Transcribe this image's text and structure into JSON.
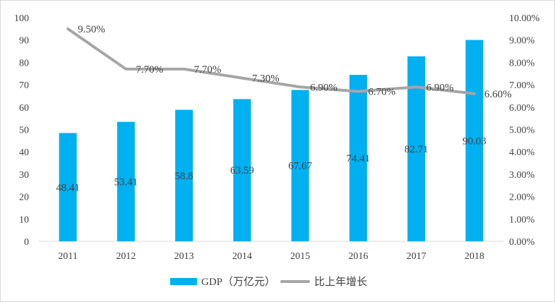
{
  "chart_data": {
    "type": "bar",
    "categories": [
      "2011",
      "2012",
      "2013",
      "2014",
      "2015",
      "2016",
      "2017",
      "2018"
    ],
    "series": [
      {
        "name": "GDP（万亿元）",
        "type": "bar",
        "axis": "left",
        "values": [
          48.41,
          53.41,
          58.8,
          63.59,
          67.67,
          74.41,
          82.71,
          90.03
        ],
        "labels": [
          "48.41",
          "53.41",
          "58.8",
          "63.59",
          "67.67",
          "74.41",
          "82.71",
          "90.03"
        ],
        "color": "#00b0f0"
      },
      {
        "name": "比上年增长",
        "type": "line",
        "axis": "right",
        "values": [
          9.5,
          7.7,
          7.7,
          7.3,
          6.9,
          6.7,
          6.9,
          6.6
        ],
        "labels": [
          "9.50%",
          "7.70%",
          "7.70%",
          "7.30%",
          "6.90%",
          "6.70%",
          "6.90%",
          "6.60%"
        ],
        "color": "#a6a6a6"
      }
    ],
    "left_axis": {
      "min": 0,
      "max": 100,
      "ticks": [
        "0",
        "10",
        "20",
        "30",
        "40",
        "50",
        "60",
        "70",
        "80",
        "90",
        "100"
      ]
    },
    "right_axis": {
      "min": 0,
      "max": 10,
      "ticks": [
        "0.00%",
        "1.00%",
        "2.00%",
        "3.00%",
        "4.00%",
        "5.00%",
        "6.00%",
        "7.00%",
        "8.00%",
        "9.00%",
        "10.00%"
      ]
    },
    "grid": false,
    "legend_position": "bottom"
  }
}
